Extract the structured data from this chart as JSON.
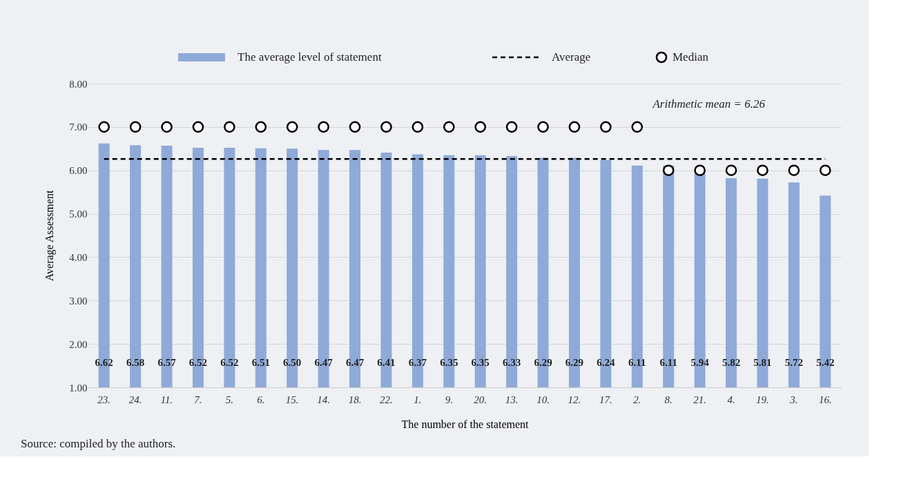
{
  "chart_data": {
    "type": "bar",
    "xlabel": "The number of the statement",
    "ylabel": "Average Assessment",
    "categories": [
      "23.",
      "24.",
      "11.",
      "7.",
      "5.",
      "6.",
      "15.",
      "14.",
      "18.",
      "22.",
      "1.",
      "9.",
      "20.",
      "13.",
      "10.",
      "12.",
      "17.",
      "2.",
      "8.",
      "21.",
      "4.",
      "19.",
      "3.",
      "16."
    ],
    "series": [
      {
        "name": "The average level of statement",
        "color": "#8faad8",
        "values": [
          6.62,
          6.58,
          6.57,
          6.52,
          6.52,
          6.51,
          6.5,
          6.47,
          6.47,
          6.41,
          6.37,
          6.35,
          6.35,
          6.33,
          6.29,
          6.29,
          6.24,
          6.11,
          6.11,
          5.94,
          5.82,
          5.81,
          5.72,
          5.42
        ],
        "value_labels": [
          "6.62",
          "6.58",
          "6.57",
          "6.52",
          "6.52",
          "6.51",
          "6.50",
          "6.47",
          "6.47",
          "6.41",
          "6.37",
          "6.35",
          "6.35",
          "6.33",
          "6.29",
          "6.29",
          "6.24",
          "6.11",
          "6.11",
          "5.94",
          "5.82",
          "5.81",
          "5.72",
          "5.42"
        ]
      },
      {
        "name": "Median",
        "type": "scatter",
        "color": "#000000",
        "marker": "circle",
        "values": [
          7,
          7,
          7,
          7,
          7,
          7,
          7,
          7,
          7,
          7,
          7,
          7,
          7,
          7,
          7,
          7,
          7,
          7,
          6,
          6,
          6,
          6,
          6,
          6
        ]
      }
    ],
    "ref_lines": [
      {
        "axis": "y",
        "value": 6.26,
        "label": "Average",
        "color": "#000000",
        "line_style": "dashed"
      }
    ],
    "annotations": [
      "Arithmetic mean = 6.26",
      "Source: compiled by the authors."
    ],
    "ylim": [
      1,
      8
    ],
    "yticks": [
      {
        "value": 1,
        "label": "1.00"
      },
      {
        "value": 2,
        "label": "2.00"
      },
      {
        "value": 3,
        "label": "3.00"
      },
      {
        "value": 4,
        "label": "4.00"
      },
      {
        "value": 5,
        "label": "5.00"
      },
      {
        "value": 6,
        "label": "6.00"
      },
      {
        "value": 7,
        "label": "7.00"
      },
      {
        "value": 8,
        "label": "8.00"
      }
    ],
    "grid": "y",
    "legend": "top"
  }
}
